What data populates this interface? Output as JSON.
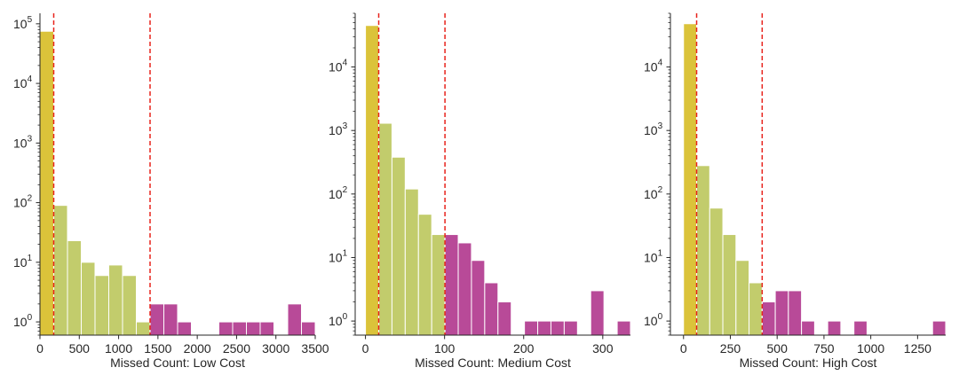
{
  "colors": {
    "low": "#dbc33a",
    "mid": "#c2cc6c",
    "high": "#b84a98",
    "threshold": "#e8231c",
    "axis": "#262626"
  },
  "chart_data": [
    {
      "type": "bar",
      "xlabel": "Missed Count: Low Cost",
      "ylabel": "",
      "yscale": "log",
      "ylim": [
        0.6,
        150000
      ],
      "xlim": [
        0,
        3500
      ],
      "xticks": [
        0,
        500,
        1000,
        1500,
        2000,
        2500,
        3000,
        3500
      ],
      "yticks": [
        {
          "value": 1,
          "label": "10",
          "exp": "0"
        },
        {
          "value": 10,
          "label": "10",
          "exp": "1"
        },
        {
          "value": 100,
          "label": "10",
          "exp": "2"
        },
        {
          "value": 1000,
          "label": "10",
          "exp": "3"
        },
        {
          "value": 10000,
          "label": "10",
          "exp": "4"
        },
        {
          "value": 100000,
          "label": "10",
          "exp": "5"
        }
      ],
      "bin_width": 175,
      "thresholds": [
        175,
        1400
      ],
      "bars": [
        {
          "x0": 0,
          "x1": 175,
          "count": 75000,
          "group": "low"
        },
        {
          "x0": 175,
          "x1": 350,
          "count": 90,
          "group": "mid"
        },
        {
          "x0": 350,
          "x1": 525,
          "count": 23,
          "group": "mid"
        },
        {
          "x0": 525,
          "x1": 700,
          "count": 10,
          "group": "mid"
        },
        {
          "x0": 700,
          "x1": 875,
          "count": 6,
          "group": "mid"
        },
        {
          "x0": 875,
          "x1": 1050,
          "count": 9,
          "group": "mid"
        },
        {
          "x0": 1050,
          "x1": 1225,
          "count": 6,
          "group": "mid"
        },
        {
          "x0": 1225,
          "x1": 1400,
          "count": 1,
          "group": "mid"
        },
        {
          "x0": 1400,
          "x1": 1575,
          "count": 2,
          "group": "high"
        },
        {
          "x0": 1575,
          "x1": 1750,
          "count": 2,
          "group": "high"
        },
        {
          "x0": 1750,
          "x1": 1925,
          "count": 1,
          "group": "high"
        },
        {
          "x0": 2275,
          "x1": 2450,
          "count": 1,
          "group": "high"
        },
        {
          "x0": 2450,
          "x1": 2625,
          "count": 1,
          "group": "high"
        },
        {
          "x0": 2625,
          "x1": 2800,
          "count": 1,
          "group": "high"
        },
        {
          "x0": 2800,
          "x1": 2975,
          "count": 1,
          "group": "high"
        },
        {
          "x0": 3150,
          "x1": 3325,
          "count": 2,
          "group": "high"
        },
        {
          "x0": 3325,
          "x1": 3500,
          "count": 1,
          "group": "high"
        }
      ]
    },
    {
      "type": "bar",
      "xlabel": "Missed Count: Medium Cost",
      "ylabel": "",
      "yscale": "log",
      "ylim": [
        0.6,
        70000
      ],
      "xlim": [
        -13,
        335
      ],
      "xticks": [
        0,
        100,
        200,
        300
      ],
      "yticks": [
        {
          "value": 1,
          "label": "10",
          "exp": "0"
        },
        {
          "value": 10,
          "label": "10",
          "exp": "1"
        },
        {
          "value": 100,
          "label": "10",
          "exp": "2"
        },
        {
          "value": 1000,
          "label": "10",
          "exp": "3"
        },
        {
          "value": 10000,
          "label": "10",
          "exp": "4"
        }
      ],
      "bin_width": 16.75,
      "thresholds": [
        16.75,
        100.5
      ],
      "bars": [
        {
          "x0": 0,
          "x1": 16.75,
          "count": 45000,
          "group": "low"
        },
        {
          "x0": 16.75,
          "x1": 33.5,
          "count": 1300,
          "group": "mid"
        },
        {
          "x0": 33.5,
          "x1": 50.25,
          "count": 380,
          "group": "mid"
        },
        {
          "x0": 50.25,
          "x1": 67,
          "count": 120,
          "group": "mid"
        },
        {
          "x0": 67,
          "x1": 83.75,
          "count": 48,
          "group": "mid"
        },
        {
          "x0": 83.75,
          "x1": 100.5,
          "count": 23,
          "group": "mid"
        },
        {
          "x0": 100.5,
          "x1": 117.25,
          "count": 23,
          "group": "high"
        },
        {
          "x0": 117.25,
          "x1": 134,
          "count": 17,
          "group": "high"
        },
        {
          "x0": 134,
          "x1": 150.75,
          "count": 9,
          "group": "high"
        },
        {
          "x0": 150.75,
          "x1": 167.5,
          "count": 4,
          "group": "high"
        },
        {
          "x0": 167.5,
          "x1": 184.25,
          "count": 2,
          "group": "high"
        },
        {
          "x0": 201,
          "x1": 217.75,
          "count": 1,
          "group": "high"
        },
        {
          "x0": 217.75,
          "x1": 234.5,
          "count": 1,
          "group": "high"
        },
        {
          "x0": 234.5,
          "x1": 251.25,
          "count": 1,
          "group": "high"
        },
        {
          "x0": 251.25,
          "x1": 268,
          "count": 1,
          "group": "high"
        },
        {
          "x0": 284.75,
          "x1": 301.5,
          "count": 3,
          "group": "high"
        },
        {
          "x0": 318.25,
          "x1": 335,
          "count": 1,
          "group": "high"
        }
      ]
    },
    {
      "type": "bar",
      "xlabel": "Missed Count: High Cost",
      "ylabel": "",
      "yscale": "log",
      "ylim": [
        0.6,
        70000
      ],
      "xlim": [
        -70,
        1400
      ],
      "xticks": [
        0,
        250,
        500,
        750,
        1000,
        1250
      ],
      "yticks": [
        {
          "value": 1,
          "label": "10",
          "exp": "0"
        },
        {
          "value": 10,
          "label": "10",
          "exp": "1"
        },
        {
          "value": 100,
          "label": "10",
          "exp": "2"
        },
        {
          "value": 1000,
          "label": "10",
          "exp": "3"
        },
        {
          "value": 10000,
          "label": "10",
          "exp": "4"
        }
      ],
      "bin_width": 70,
      "thresholds": [
        70,
        420
      ],
      "bars": [
        {
          "x0": 0,
          "x1": 70,
          "count": 48000,
          "group": "low"
        },
        {
          "x0": 70,
          "x1": 140,
          "count": 280,
          "group": "mid"
        },
        {
          "x0": 140,
          "x1": 210,
          "count": 60,
          "group": "mid"
        },
        {
          "x0": 210,
          "x1": 280,
          "count": 23,
          "group": "mid"
        },
        {
          "x0": 280,
          "x1": 350,
          "count": 9,
          "group": "mid"
        },
        {
          "x0": 350,
          "x1": 420,
          "count": 4,
          "group": "mid"
        },
        {
          "x0": 420,
          "x1": 490,
          "count": 2,
          "group": "high"
        },
        {
          "x0": 490,
          "x1": 560,
          "count": 3,
          "group": "high"
        },
        {
          "x0": 560,
          "x1": 630,
          "count": 3,
          "group": "high"
        },
        {
          "x0": 630,
          "x1": 700,
          "count": 1,
          "group": "high"
        },
        {
          "x0": 770,
          "x1": 840,
          "count": 1,
          "group": "high"
        },
        {
          "x0": 910,
          "x1": 980,
          "count": 1,
          "group": "high"
        },
        {
          "x0": 1330,
          "x1": 1400,
          "count": 1,
          "group": "high"
        }
      ]
    }
  ]
}
